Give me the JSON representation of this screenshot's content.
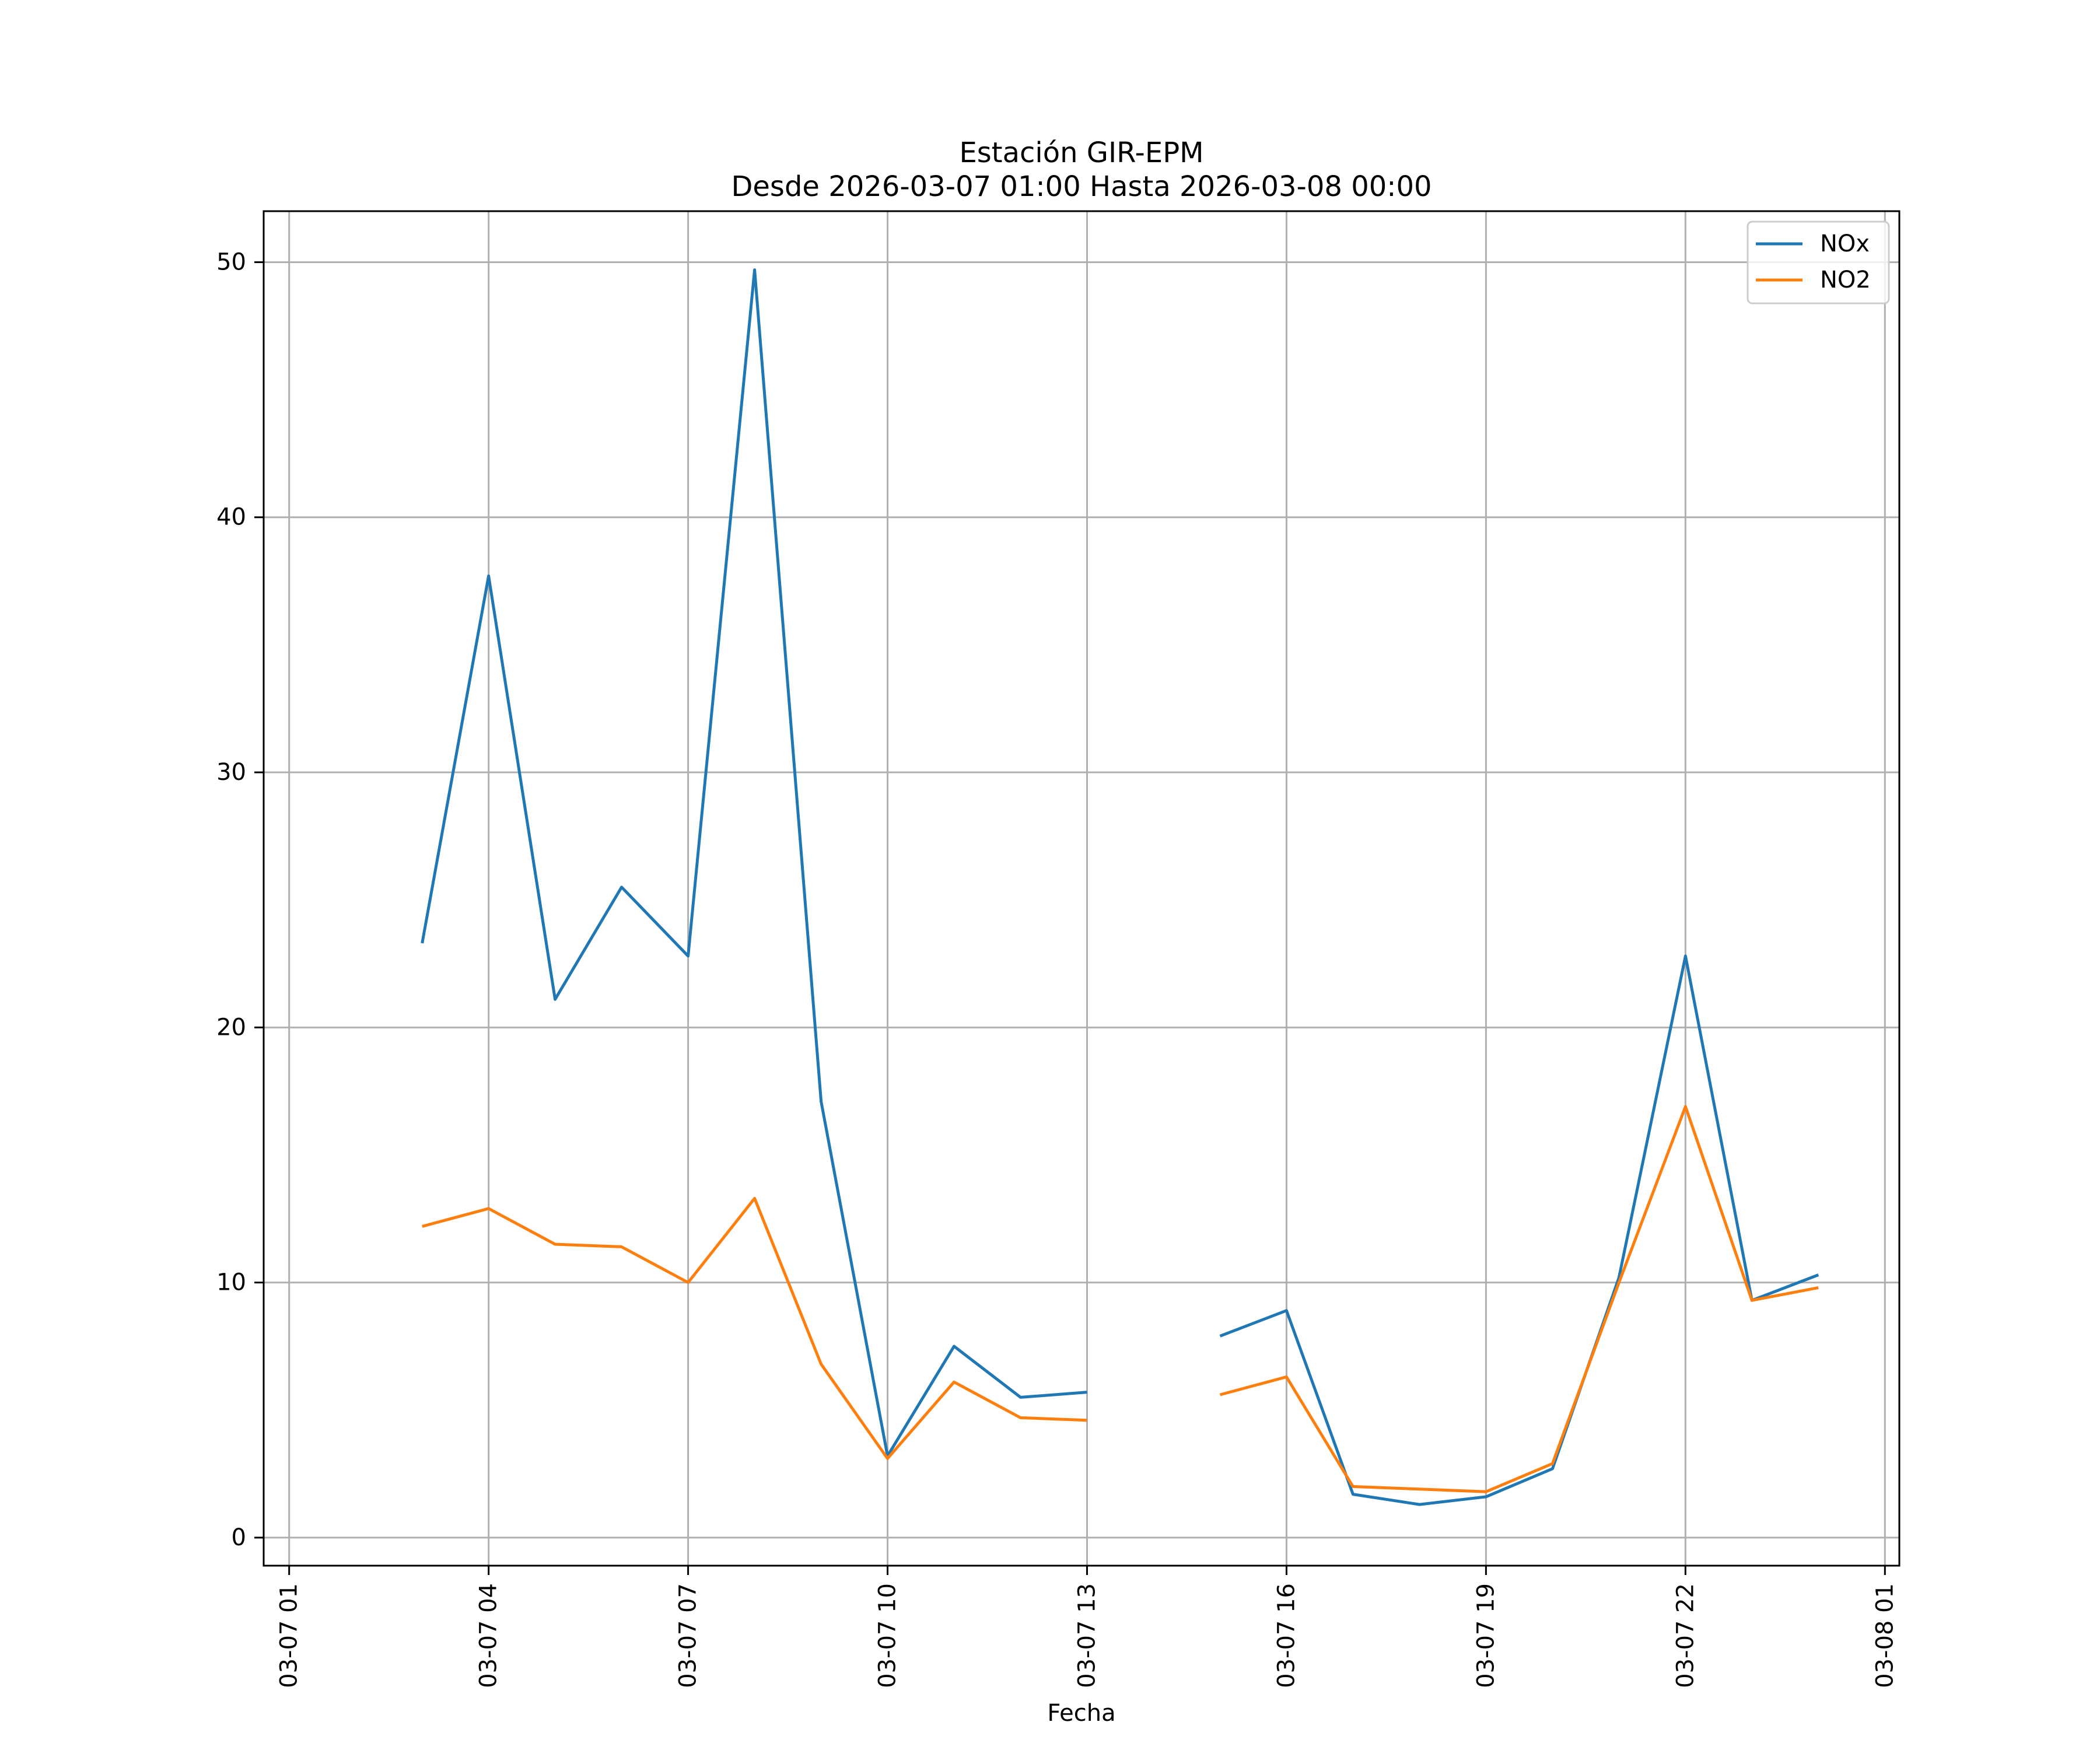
{
  "chart_data": {
    "type": "line",
    "title": "Estación GIR-EPM",
    "subtitle": "Desde 2026-03-07 01:00 Hasta 2026-03-08 00:00",
    "xlabel": "Fecha",
    "ylabel": "",
    "x_type": "datetime",
    "xlim": [
      "2026-03-07 00:37",
      "2026-03-08 01:13"
    ],
    "ylim": [
      -1.1,
      52.0
    ],
    "grid": true,
    "legend_position": "top-right",
    "x_ticks": [
      {
        "value": "2026-03-07 01:00",
        "label": "03-07 01"
      },
      {
        "value": "2026-03-07 04:00",
        "label": "03-07 04"
      },
      {
        "value": "2026-03-07 07:00",
        "label": "03-07 07"
      },
      {
        "value": "2026-03-07 10:00",
        "label": "03-07 10"
      },
      {
        "value": "2026-03-07 13:00",
        "label": "03-07 13"
      },
      {
        "value": "2026-03-07 16:00",
        "label": "03-07 16"
      },
      {
        "value": "2026-03-07 19:00",
        "label": "03-07 19"
      },
      {
        "value": "2026-03-07 22:00",
        "label": "03-07 22"
      },
      {
        "value": "2026-03-08 01:00",
        "label": "03-08 01"
      }
    ],
    "y_ticks": [
      {
        "value": 0,
        "label": "0"
      },
      {
        "value": 10,
        "label": "10"
      },
      {
        "value": 20,
        "label": "20"
      },
      {
        "value": 30,
        "label": "30"
      },
      {
        "value": 40,
        "label": "40"
      },
      {
        "value": 50,
        "label": "50"
      }
    ],
    "x": [
      "2026-03-07 01:00",
      "2026-03-07 02:00",
      "2026-03-07 03:00",
      "2026-03-07 04:00",
      "2026-03-07 05:00",
      "2026-03-07 06:00",
      "2026-03-07 07:00",
      "2026-03-07 08:00",
      "2026-03-07 09:00",
      "2026-03-07 10:00",
      "2026-03-07 11:00",
      "2026-03-07 12:00",
      "2026-03-07 13:00",
      "2026-03-07 14:00",
      "2026-03-07 15:00",
      "2026-03-07 16:00",
      "2026-03-07 17:00",
      "2026-03-07 18:00",
      "2026-03-07 19:00",
      "2026-03-07 20:00",
      "2026-03-07 21:00",
      "2026-03-07 22:00",
      "2026-03-07 23:00",
      "2026-03-08 00:00"
    ],
    "series": [
      {
        "name": "NOx",
        "color": "#1f77b4",
        "values": [
          null,
          null,
          23.3,
          37.7,
          21.1,
          25.5,
          22.8,
          49.7,
          17.1,
          3.2,
          7.5,
          5.5,
          5.7,
          null,
          7.9,
          8.9,
          1.7,
          1.3,
          1.6,
          2.7,
          10.2,
          22.8,
          9.3,
          10.3
        ]
      },
      {
        "name": "NO2",
        "color": "#ff7f0e",
        "values": [
          null,
          null,
          12.2,
          12.9,
          11.5,
          11.4,
          10.0,
          13.3,
          6.8,
          3.1,
          6.1,
          4.7,
          4.6,
          null,
          5.6,
          6.3,
          2.0,
          1.9,
          1.8,
          2.9,
          10.0,
          16.9,
          9.3,
          9.8
        ]
      }
    ]
  }
}
